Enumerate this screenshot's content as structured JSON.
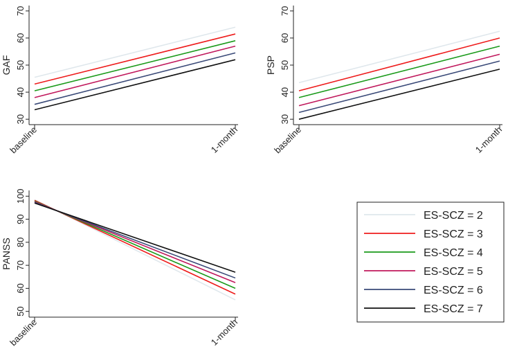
{
  "chart_data": [
    {
      "type": "line",
      "ylabel": "GAF",
      "x": [
        "baseline",
        "1-month"
      ],
      "ylim": [
        28,
        72
      ],
      "yticks": [
        30,
        40,
        50,
        60,
        70
      ],
      "series": [
        {
          "name": "ES-SCZ = 2",
          "color": "#dfe7ec",
          "values": [
            45.5,
            64
          ]
        },
        {
          "name": "ES-SCZ = 3",
          "color": "#ee1c1c",
          "values": [
            43,
            61.5
          ]
        },
        {
          "name": "ES-SCZ = 4",
          "color": "#1a9a1a",
          "values": [
            40.5,
            59
          ]
        },
        {
          "name": "ES-SCZ = 5",
          "color": "#c0185c",
          "values": [
            38,
            57
          ]
        },
        {
          "name": "ES-SCZ = 6",
          "color": "#3a4a78",
          "values": [
            35.5,
            54.5
          ]
        },
        {
          "name": "ES-SCZ = 7",
          "color": "#111111",
          "values": [
            33.5,
            52
          ]
        }
      ]
    },
    {
      "type": "line",
      "ylabel": "PSP",
      "x": [
        "baseline",
        "1-month"
      ],
      "ylim": [
        28,
        72
      ],
      "yticks": [
        30,
        40,
        50,
        60,
        70
      ],
      "series": [
        {
          "name": "ES-SCZ = 2",
          "color": "#dfe7ec",
          "values": [
            43.5,
            62.5
          ]
        },
        {
          "name": "ES-SCZ = 3",
          "color": "#ee1c1c",
          "values": [
            40.5,
            60
          ]
        },
        {
          "name": "ES-SCZ = 4",
          "color": "#1a9a1a",
          "values": [
            38,
            57
          ]
        },
        {
          "name": "ES-SCZ = 5",
          "color": "#c0185c",
          "values": [
            35,
            54
          ]
        },
        {
          "name": "ES-SCZ = 6",
          "color": "#3a4a78",
          "values": [
            32.5,
            51.5
          ]
        },
        {
          "name": "ES-SCZ = 7",
          "color": "#111111",
          "values": [
            30,
            48.5
          ]
        }
      ]
    },
    {
      "type": "line",
      "ylabel": "PANSS",
      "x": [
        "baseline",
        "1-month"
      ],
      "ylim": [
        47.5,
        102.5
      ],
      "yticks": [
        50,
        60,
        70,
        80,
        90,
        100
      ],
      "series": [
        {
          "name": "ES-SCZ = 2",
          "color": "#dfe7ec",
          "values": [
            98.5,
            55
          ]
        },
        {
          "name": "ES-SCZ = 3",
          "color": "#ee1c1c",
          "values": [
            98.2,
            57.5
          ]
        },
        {
          "name": "ES-SCZ = 4",
          "color": "#1a9a1a",
          "values": [
            97.9,
            60
          ]
        },
        {
          "name": "ES-SCZ = 5",
          "color": "#c0185c",
          "values": [
            97.6,
            62.5
          ]
        },
        {
          "name": "ES-SCZ = 6",
          "color": "#3a4a78",
          "values": [
            97.3,
            64.5
          ]
        },
        {
          "name": "ES-SCZ = 7",
          "color": "#111111",
          "values": [
            97,
            67
          ]
        }
      ]
    }
  ],
  "legend": {
    "placement": "bottom-right",
    "entries": [
      {
        "label": "ES-SCZ = 2",
        "color": "#dfe7ec"
      },
      {
        "label": "ES-SCZ = 3",
        "color": "#ee1c1c"
      },
      {
        "label": "ES-SCZ = 4",
        "color": "#1a9a1a"
      },
      {
        "label": "ES-SCZ = 5",
        "color": "#c0185c"
      },
      {
        "label": "ES-SCZ = 6",
        "color": "#3a4a78"
      },
      {
        "label": "ES-SCZ = 7",
        "color": "#111111"
      }
    ]
  }
}
